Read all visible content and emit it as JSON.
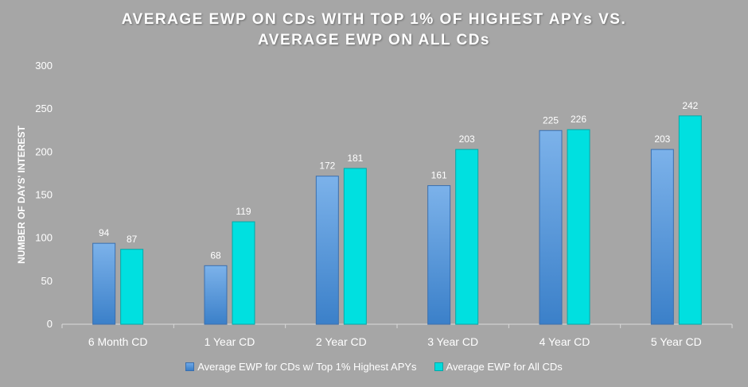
{
  "chart_data": {
    "type": "bar",
    "title_lines": [
      "AVERAGE EWP ON CDs WITH TOP 1% OF HIGHEST APYs VS.",
      "AVERAGE EWP ON ALL CDs"
    ],
    "xlabel": "",
    "ylabel": "NUMBER OF DAYS' INTEREST",
    "ylim": [
      0,
      300
    ],
    "yticks": [
      0,
      50,
      100,
      150,
      200,
      250,
      300
    ],
    "categories": [
      "6 Month CD",
      "1 Year CD",
      "2 Year CD",
      "3 Year CD",
      "4 Year CD",
      "5 Year CD"
    ],
    "series": [
      {
        "name": "Average EWP for CDs w/ Top 1% Highest APYs",
        "values": [
          94,
          68,
          172,
          161,
          225,
          203
        ],
        "color": "#5b9bd5"
      },
      {
        "name": "Average EWP for All CDs",
        "values": [
          87,
          119,
          181,
          203,
          226,
          242
        ],
        "color": "#00e0e0"
      }
    ],
    "grid": false,
    "legend_position": "bottom"
  },
  "colors": {
    "background": "#a6a6a6",
    "axis": "#d9d9d9",
    "text": "#ffffff"
  }
}
